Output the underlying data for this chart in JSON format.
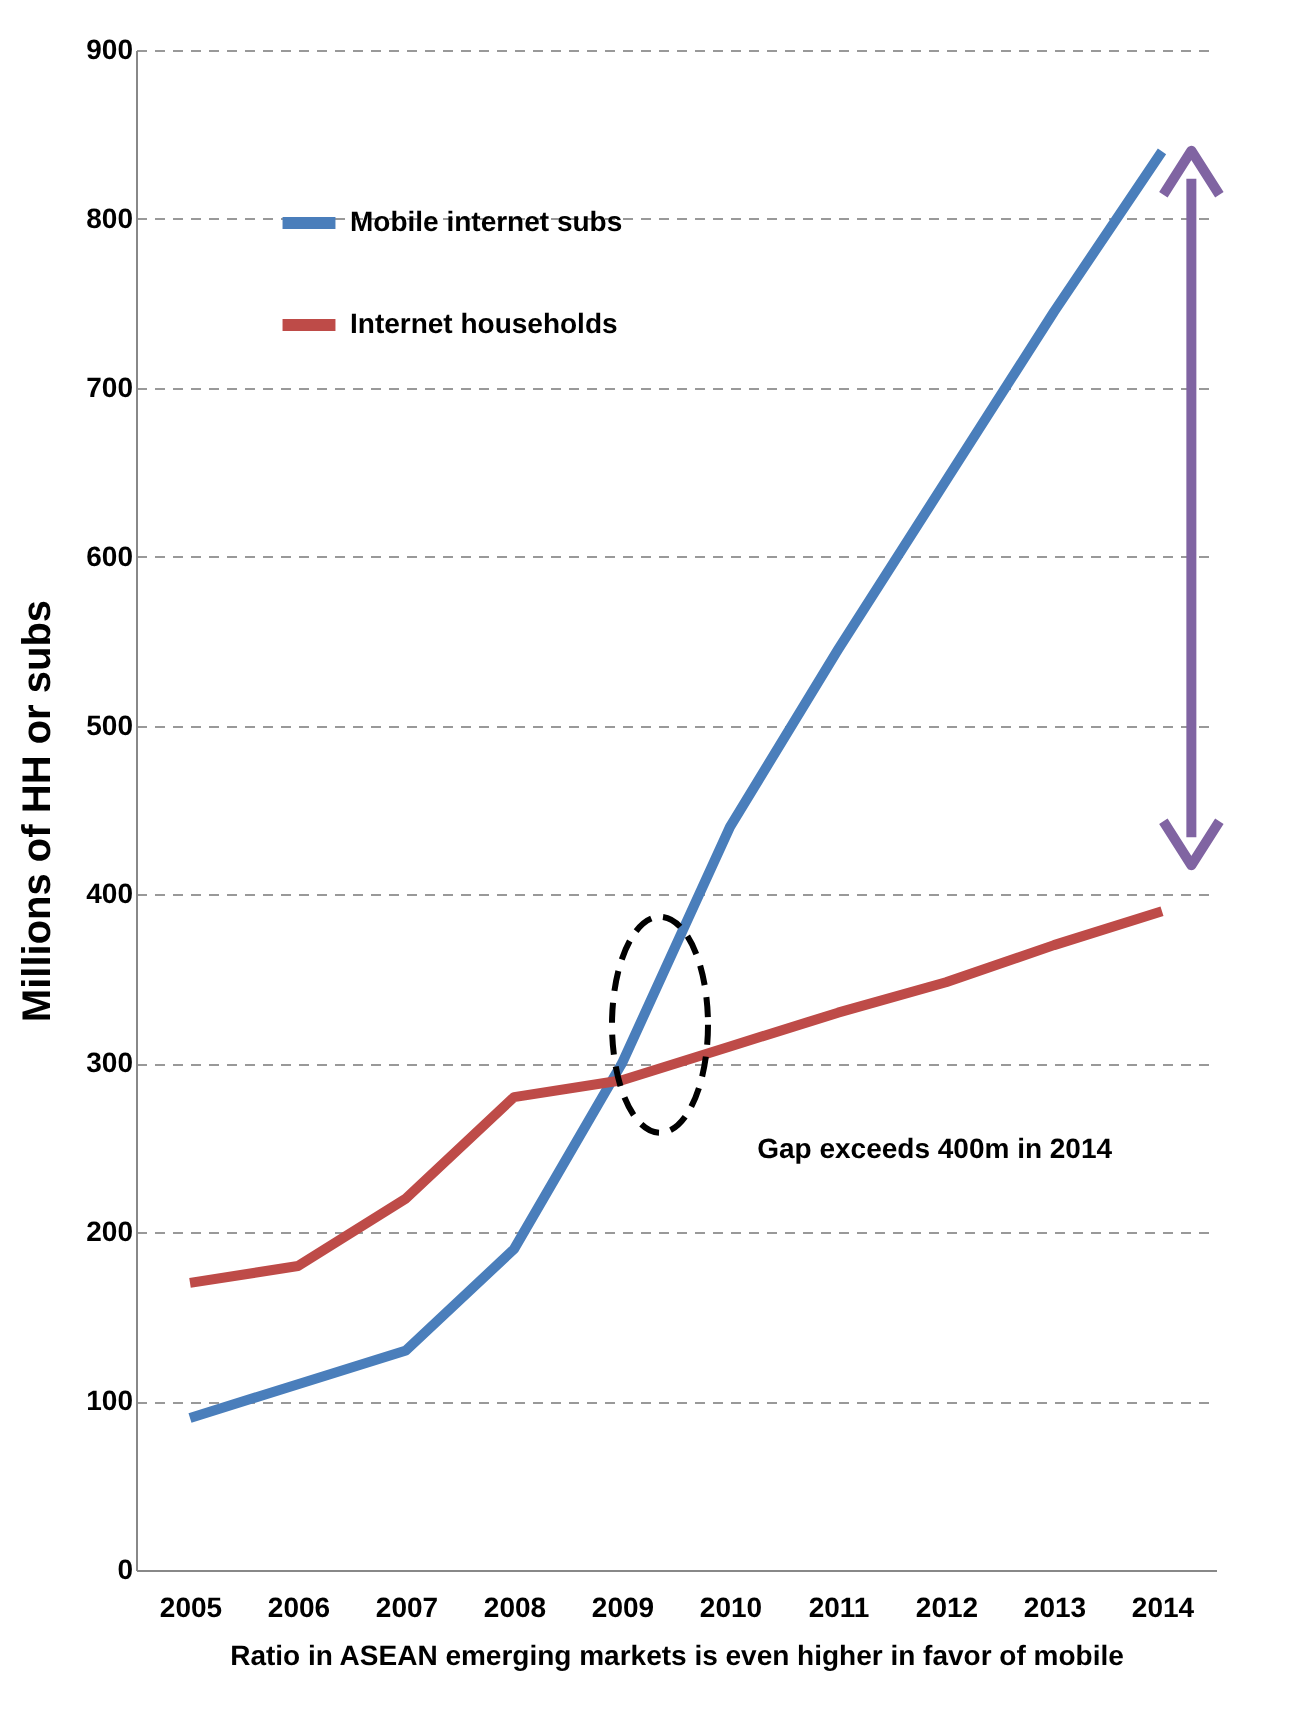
{
  "chart_data": {
    "type": "line",
    "xlabel": "Ratio in ASEAN emerging  markets is even higher in favor of mobile",
    "ylabel": "Millions of HH or subs",
    "categories": [
      "2005",
      "2006",
      "2007",
      "2008",
      "2009",
      "2010",
      "2011",
      "2012",
      "2013",
      "2014"
    ],
    "series": [
      {
        "name": "Mobile internet subs",
        "color": "#4a7ebb",
        "values": [
          90,
          110,
          130,
          190,
          300,
          440,
          545,
          645,
          745,
          840
        ]
      },
      {
        "name": "Internet households",
        "color": "#be4b48",
        "values": [
          170,
          180,
          220,
          280,
          290,
          310,
          330,
          348,
          370,
          390
        ]
      }
    ],
    "ylim": [
      0,
      900
    ],
    "yticks": [
      0,
      100,
      200,
      300,
      400,
      500,
      600,
      700,
      800,
      900
    ],
    "grid": "y",
    "legend": "top left",
    "line_style": "solid",
    "marker": "none",
    "annotations": [
      "Gap exceeds 400m in 2014"
    ]
  }
}
